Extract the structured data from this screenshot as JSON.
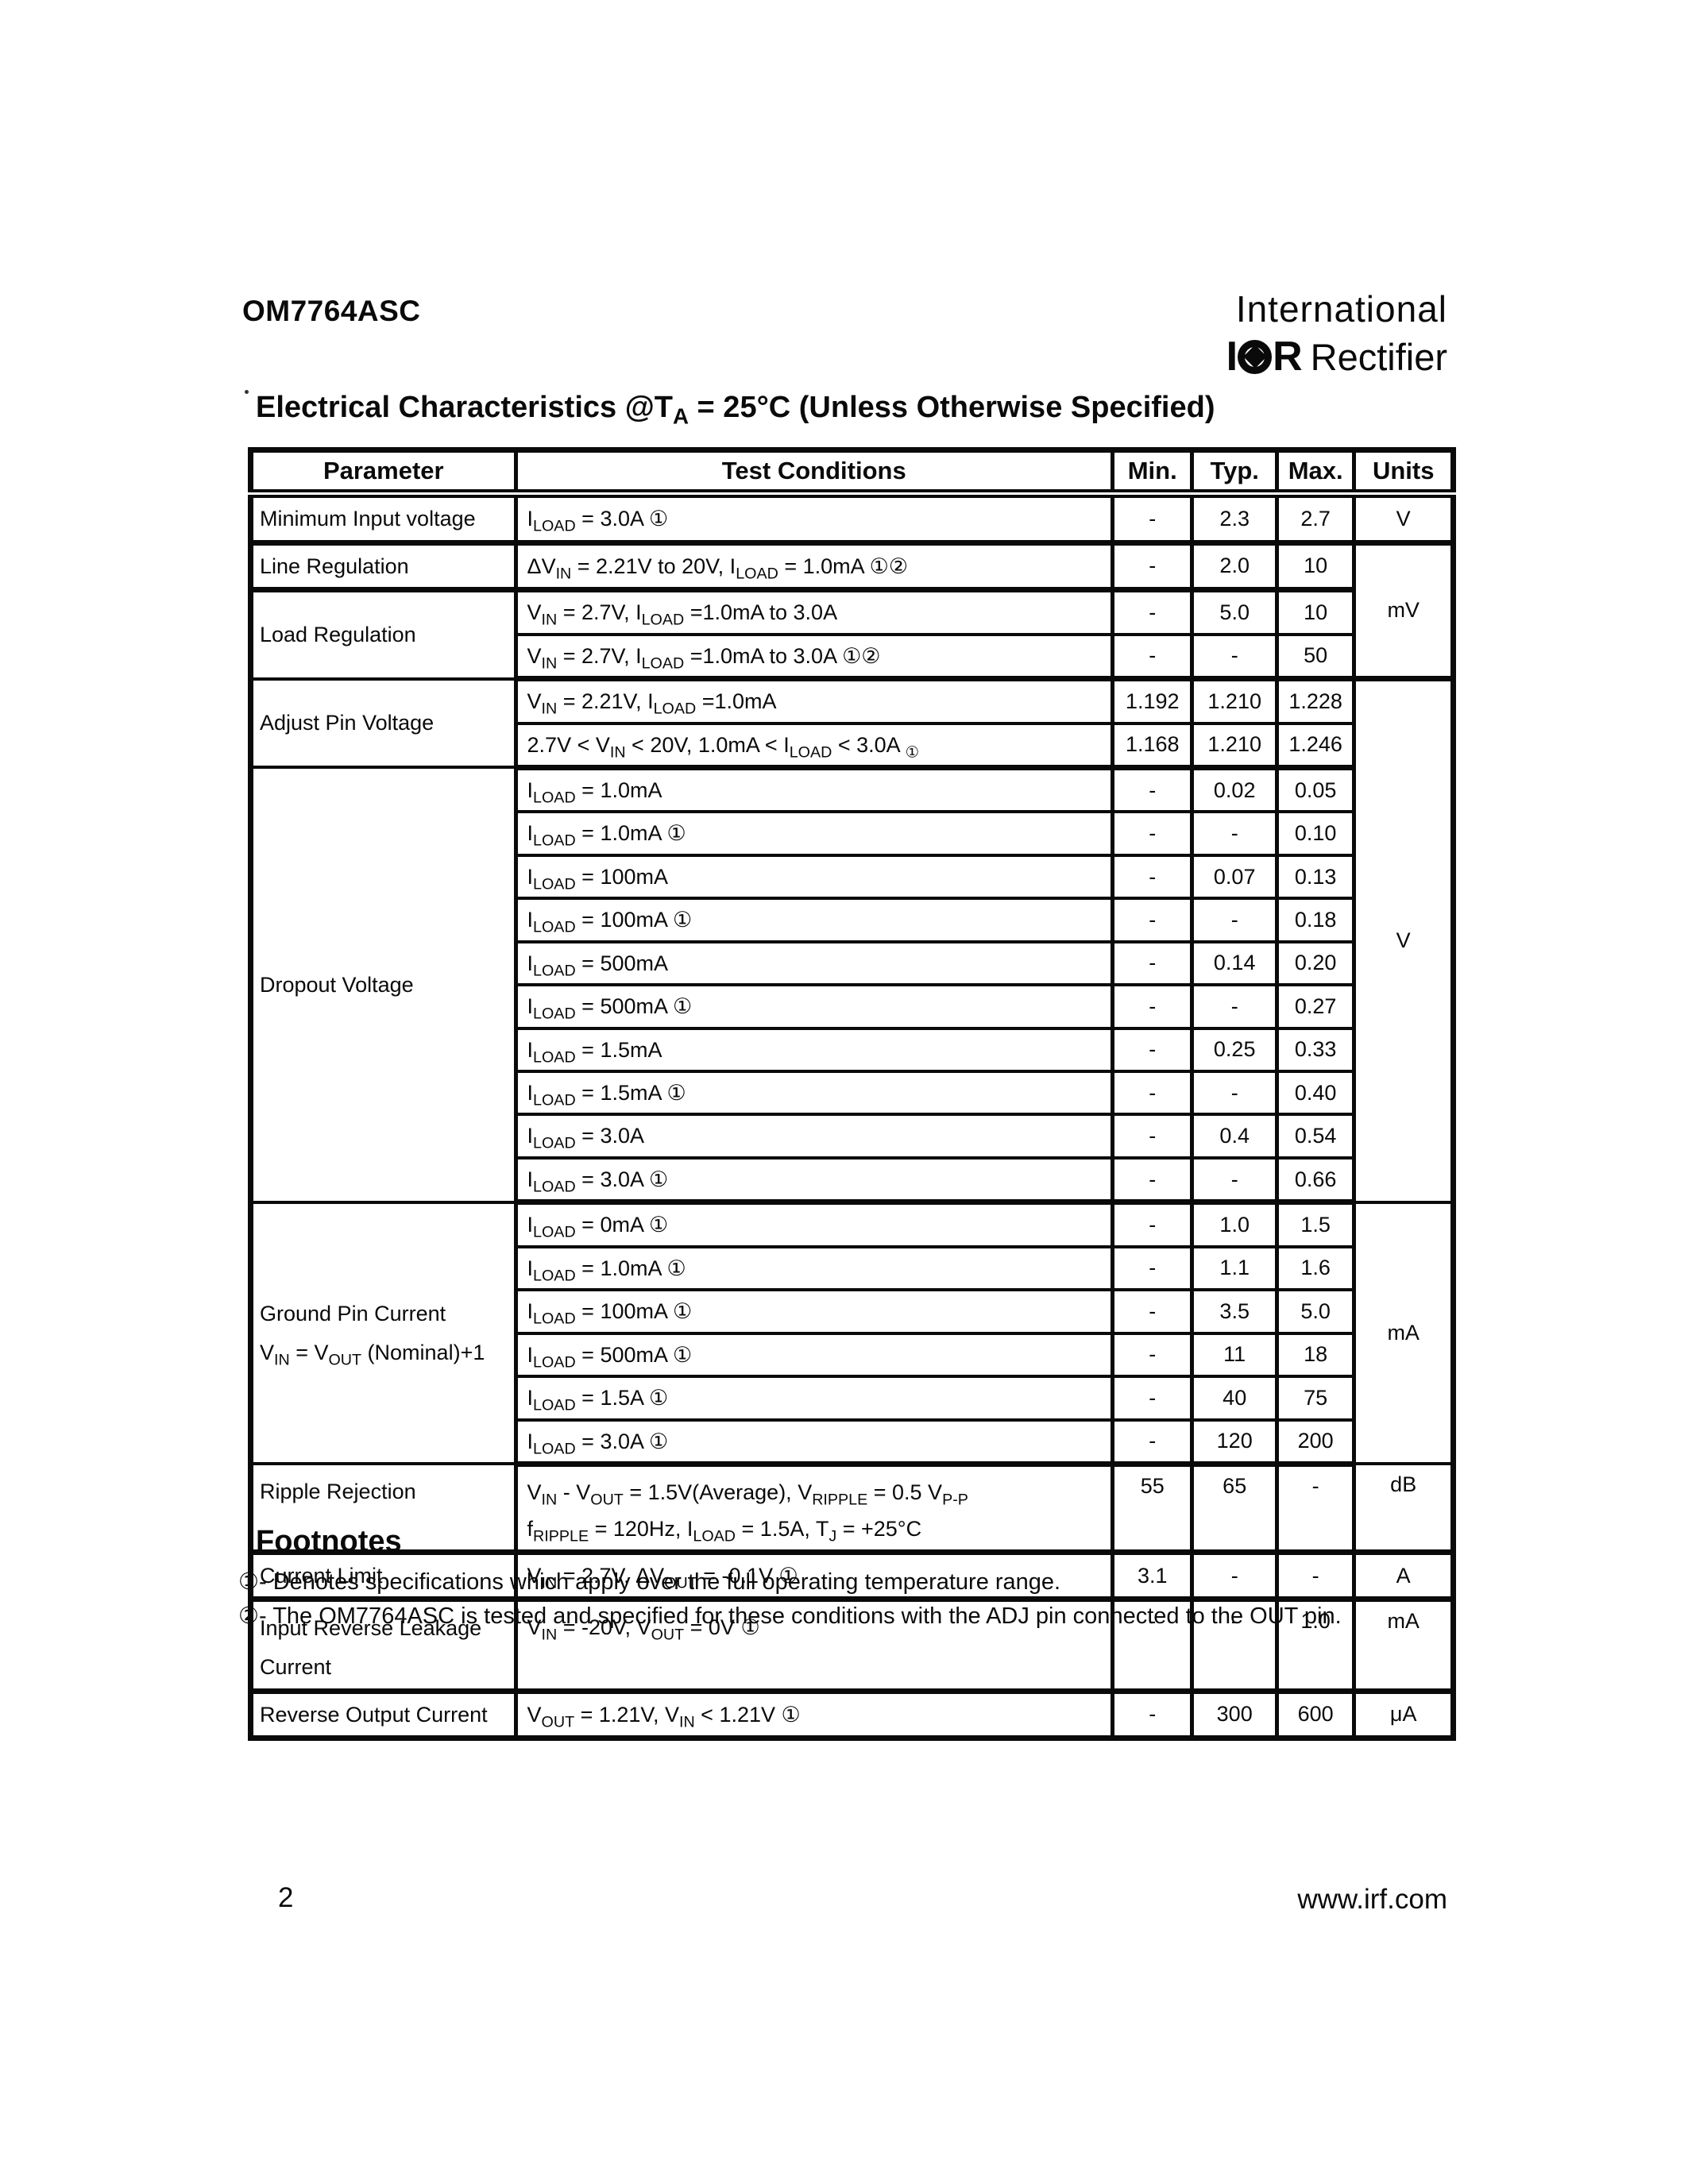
{
  "header": {
    "part_number": "OM7764ASC",
    "logo": {
      "line1": "International",
      "mark_left": "I",
      "mark_right": "R",
      "line2": "Rectifier"
    }
  },
  "title": "Electrical Characteristics @T~A~ = 25°C (Unless Otherwise Specified)",
  "table": {
    "headers": [
      "Parameter",
      "Test Conditions",
      "Min.",
      "Typ.",
      "Max.",
      "Units"
    ],
    "rows": [
      {
        "h": 38,
        "gb": true,
        "param": {
          "t": "Minimum Input voltage",
          "rs": 1
        },
        "cond": "I~LOAD~ = 3.0A ①",
        "min": "-",
        "typ": "2.3",
        "max": "2.7",
        "units": {
          "t": "V",
          "rs": 1
        }
      },
      {
        "h": 41,
        "gb": true,
        "param": {
          "t": "Line Regulation",
          "rs": 1
        },
        "cond": "ΔV~IN~ = 2.21V to 20V, I~LOAD~ = 1.0mA ①②",
        "min": "-",
        "typ": "2.0",
        "max": "10",
        "units": {
          "t": "mV",
          "rs": 3
        }
      },
      {
        "h": 41,
        "param": {
          "t": "Load Regulation",
          "rs": 2
        },
        "cond": "V~IN~ = 2.7V, I~LOAD~ =1.0mA to 3.0A",
        "min": "-",
        "typ": "5.0",
        "max": "10"
      },
      {
        "h": 41,
        "gb": true,
        "cond": "V~IN~ = 2.7V, I~LOAD~ =1.0mA to 3.0A ①②",
        "min": "-",
        "typ": "-",
        "max": "50"
      },
      {
        "h": 40,
        "param": {
          "t": "Adjust Pin Voltage",
          "rs": 2
        },
        "cond": "V~IN~ = 2.21V, I~LOAD~ =1.0mA",
        "min": "1.192",
        "typ": "1.210",
        "max": "1.228",
        "units": {
          "t": "V",
          "rs": 12
        }
      },
      {
        "h": 40,
        "gb": true,
        "cond": "2.7V < V~IN~ < 20V, 1.0mA < I~LOAD~ < 3.0A ~①~",
        "min": "1.168",
        "typ": "1.210",
        "max": "1.246"
      },
      {
        "h": 41,
        "param": {
          "t": "Dropout Voltage",
          "rs": 10
        },
        "cond": "I~LOAD~ = 1.0mA",
        "min": "-",
        "typ": "0.02",
        "max": "0.05"
      },
      {
        "h": 41,
        "cond": "I~LOAD~ = 1.0mA ①",
        "min": "-",
        "typ": "-",
        "max": "0.10"
      },
      {
        "h": 41,
        "cond": "I~LOAD~ = 100mA",
        "min": "-",
        "typ": "0.07",
        "max": "0.13"
      },
      {
        "h": 41,
        "cond": "I~LOAD~ = 100mA ①",
        "min": "-",
        "typ": "-",
        "max": "0.18"
      },
      {
        "h": 41,
        "cond": "I~LOAD~ = 500mA",
        "min": "-",
        "typ": "0.14",
        "max": "0.20"
      },
      {
        "h": 41,
        "cond": "I~LOAD~ = 500mA ①",
        "min": "-",
        "typ": "-",
        "max": "0.27"
      },
      {
        "h": 41,
        "cond": "I~LOAD~ = 1.5mA",
        "min": "-",
        "typ": "0.25",
        "max": "0.33"
      },
      {
        "h": 41,
        "cond": "I~LOAD~ = 1.5mA ①",
        "min": "-",
        "typ": "-",
        "max": "0.40"
      },
      {
        "h": 41,
        "cond": "I~LOAD~ = 3.0A",
        "min": "-",
        "typ": "0.4",
        "max": "0.54"
      },
      {
        "h": 41,
        "gb": true,
        "cond": "I~LOAD~ = 3.0A ①",
        "min": "-",
        "typ": "-",
        "max": "0.66"
      },
      {
        "h": 41,
        "param": {
          "t": "Ground Pin Current\nV~IN~ = V~OUT~ (Nominal)+1",
          "rs": 6
        },
        "cond": "I~LOAD~ = 0mA ①",
        "min": "-",
        "typ": "1.0",
        "max": "1.5",
        "units": {
          "t": "mA",
          "rs": 6
        }
      },
      {
        "h": 41,
        "cond": "I~LOAD~ = 1.0mA ①",
        "min": "-",
        "typ": "1.1",
        "max": "1.6"
      },
      {
        "h": 41,
        "cond": "I~LOAD~ = 100mA ①",
        "min": "-",
        "typ": "3.5",
        "max": "5.0"
      },
      {
        "h": 41,
        "cond": "I~LOAD~ = 500mA ①",
        "min": "-",
        "typ": "11",
        "max": "18"
      },
      {
        "h": 41,
        "cond": "I~LOAD~ = 1.5A ①",
        "min": "-",
        "typ": "40",
        "max": "75"
      },
      {
        "h": 41,
        "gb": true,
        "cond": "I~LOAD~ = 3.0A ①",
        "min": "-",
        "typ": "120",
        "max": "200"
      },
      {
        "h": 86,
        "gb": true,
        "va": "top",
        "param": {
          "t": "Ripple Rejection",
          "rs": 1
        },
        "cond": "V~IN~ - V~OUT~ = 1.5V(Average), V~RIPPLE~ = 0.5 V~P-P~\nf~RIPPLE~ = 120Hz, I~LOAD~ = 1.5A, T~J~ = +25°C",
        "min": "55",
        "typ": "65",
        "max": "-",
        "units": {
          "t": "dB",
          "rs": 1
        }
      },
      {
        "h": 40,
        "gb": true,
        "param": {
          "t": "Current Limit",
          "rs": 1
        },
        "cond": "V~IN~ = 2.7V, ΔV~OUT~ = -0.1V ①",
        "min": "3.1",
        "typ": "-",
        "max": "-",
        "units": {
          "t": "A",
          "rs": 1
        }
      },
      {
        "h": 84,
        "gb": true,
        "va": "top",
        "param": {
          "t": "Input Reverse Leakage Current",
          "rs": 1
        },
        "cond": "V~IN~ = -20V, V~OUT~ = 0V ①",
        "min": "-",
        "typ": "-",
        "max": "1.0",
        "units": {
          "t": "mA",
          "rs": 1
        }
      },
      {
        "h": 41,
        "param": {
          "t": "Reverse Output Current",
          "rs": 1
        },
        "cond": "V~OUT~ = 1.21V, V~IN~ < 1.21V ①",
        "min": "-",
        "typ": "300",
        "max": "600",
        "units": {
          "t": "μA",
          "rs": 1
        }
      }
    ]
  },
  "footnotes": {
    "heading": "Footnotes",
    "items": [
      "①- Denotes specifications which apply over the full operating temperature range.",
      "②- The OM7764ASC is tested and specified for these conditions with the ADJ pin connected to the OUT pin."
    ]
  },
  "footer": {
    "page_number": "2",
    "website": "www.irf.com"
  }
}
